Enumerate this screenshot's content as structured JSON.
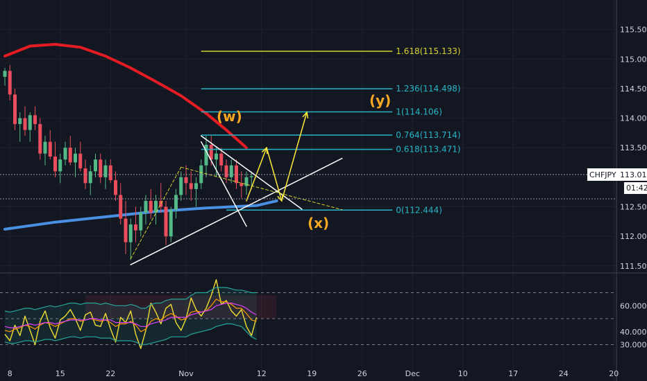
{
  "colors": {
    "background": "#131722",
    "grid": "#1e222d",
    "bull": "#53b987",
    "bear": "#eb4d5c",
    "ma_long": "#e51c23",
    "ma_blue": "#4a90e2",
    "trend": "#ffffff",
    "fib_teal": "#26b5c6",
    "fib_yellow": "#d8d22e",
    "projection": "#ffeb3b",
    "wave_label": "#f7a823",
    "rsi_yellow": "#e6d433",
    "rsi_orange": "#ff9800",
    "rsi_magenta": "#e040fb",
    "rsi_band": "#26a69a",
    "tag_bg": "#ffffff",
    "tag_text": "#131722"
  },
  "symbol_tag": {
    "symbol": "CHFJPY",
    "price": "113.018",
    "countdown": "01:42"
  },
  "wave_labels": {
    "w": "(w)",
    "x": "(x)",
    "y": "(y)"
  },
  "chart_data": {
    "type": "candlestick",
    "ylim": [
      111.38,
      116.0
    ],
    "xaxis": {
      "ticks": [
        {
          "bar": 1,
          "label": "8"
        },
        {
          "bar": 11,
          "label": "15"
        },
        {
          "bar": 21,
          "label": "22"
        },
        {
          "bar": 36,
          "label": "Nov"
        },
        {
          "bar": 51,
          "label": "12"
        },
        {
          "bar": 61,
          "label": "19"
        },
        {
          "bar": 71,
          "label": "26"
        },
        {
          "bar": 81,
          "label": "Dec"
        },
        {
          "bar": 91,
          "label": "10"
        },
        {
          "bar": 101,
          "label": "17"
        },
        {
          "bar": 111,
          "label": "24"
        },
        {
          "bar": 121,
          "label": "20"
        }
      ]
    },
    "yaxis_ticks": [
      "111.500",
      "112.000",
      "112.500",
      "113.000",
      "113.500",
      "114.000",
      "114.500",
      "115.000",
      "115.500"
    ],
    "last_price": 113.018,
    "fib_levels": [
      {
        "level": "1.618",
        "price": 115.133,
        "label": "1.618(115.133)",
        "color": "#d8d22e"
      },
      {
        "level": "1.236",
        "price": 114.498,
        "label": "1.236(114.498)",
        "color": "#26b5c6"
      },
      {
        "level": "1",
        "price": 114.106,
        "label": "1(114.106)",
        "color": "#26b5c6"
      },
      {
        "level": "0.764",
        "price": 113.714,
        "label": "0.764(113.714)",
        "color": "#26b5c6"
      },
      {
        "level": "0.618",
        "price": 113.471,
        "label": "0.618(113.471)",
        "color": "#26b5c6"
      },
      {
        "level": "0",
        "price": 112.444,
        "label": "0(112.444)",
        "color": "#26b5c6"
      }
    ],
    "candles": [
      [
        114.7,
        114.85,
        114.55,
        114.8
      ],
      [
        114.8,
        114.9,
        114.3,
        114.4
      ],
      [
        114.4,
        114.5,
        113.8,
        113.9
      ],
      [
        113.9,
        114.1,
        113.6,
        114.0
      ],
      [
        114.0,
        114.2,
        113.7,
        113.8
      ],
      [
        113.8,
        114.1,
        113.6,
        114.05
      ],
      [
        114.05,
        114.2,
        113.8,
        113.9
      ],
      [
        113.9,
        114.0,
        113.3,
        113.4
      ],
      [
        113.4,
        113.7,
        113.2,
        113.6
      ],
      [
        113.6,
        113.8,
        113.3,
        113.35
      ],
      [
        113.35,
        113.6,
        113.0,
        113.1
      ],
      [
        113.1,
        113.4,
        112.9,
        113.3
      ],
      [
        113.3,
        113.6,
        113.2,
        113.5
      ],
      [
        113.5,
        113.7,
        113.2,
        113.25
      ],
      [
        113.25,
        113.5,
        113.0,
        113.4
      ],
      [
        113.4,
        113.6,
        113.1,
        113.15
      ],
      [
        113.15,
        113.3,
        112.8,
        112.9
      ],
      [
        112.9,
        113.2,
        112.7,
        113.1
      ],
      [
        113.1,
        113.4,
        113.0,
        113.3
      ],
      [
        113.3,
        113.4,
        112.9,
        113.0
      ],
      [
        113.0,
        113.3,
        112.8,
        113.2
      ],
      [
        113.2,
        113.3,
        112.9,
        112.95
      ],
      [
        112.95,
        113.1,
        112.6,
        112.7
      ],
      [
        112.7,
        112.9,
        112.2,
        112.3
      ],
      [
        112.3,
        112.6,
        111.7,
        111.9
      ],
      [
        111.9,
        112.3,
        111.6,
        112.2
      ],
      [
        112.2,
        112.5,
        111.9,
        112.1
      ],
      [
        112.1,
        112.5,
        112.0,
        112.4
      ],
      [
        112.4,
        112.7,
        112.2,
        112.6
      ],
      [
        112.6,
        112.8,
        112.3,
        112.4
      ],
      [
        112.4,
        112.7,
        112.2,
        112.6
      ],
      [
        112.6,
        112.9,
        112.4,
        112.5
      ],
      [
        112.5,
        112.6,
        111.85,
        112.0
      ],
      [
        112.0,
        112.5,
        111.9,
        112.45
      ],
      [
        112.45,
        112.8,
        112.3,
        112.7
      ],
      [
        112.7,
        113.1,
        112.6,
        113.0
      ],
      [
        113.0,
        113.2,
        112.7,
        112.9
      ],
      [
        112.9,
        113.1,
        112.6,
        112.8
      ],
      [
        112.8,
        113.0,
        112.5,
        112.9
      ],
      [
        112.9,
        113.3,
        112.8,
        113.2
      ],
      [
        113.2,
        113.7,
        113.0,
        113.55
      ],
      [
        113.55,
        113.7,
        113.2,
        113.3
      ],
      [
        113.3,
        113.5,
        113.0,
        113.4
      ],
      [
        113.4,
        113.5,
        113.1,
        113.2
      ],
      [
        113.2,
        113.3,
        112.9,
        113.0
      ],
      [
        113.0,
        113.3,
        112.9,
        113.2
      ],
      [
        113.2,
        113.3,
        112.8,
        112.9
      ],
      [
        112.9,
        113.1,
        112.65,
        112.85
      ],
      [
        112.85,
        113.1,
        112.7,
        113.0
      ],
      [
        113.0,
        113.1,
        112.8,
        113.018
      ]
    ],
    "ma_red": [
      [
        0,
        115.05
      ],
      [
        5,
        115.22
      ],
      [
        10,
        115.25
      ],
      [
        15,
        115.2
      ],
      [
        20,
        115.05
      ],
      [
        25,
        114.85
      ],
      [
        30,
        114.62
      ],
      [
        35,
        114.38
      ],
      [
        40,
        114.08
      ],
      [
        44,
        113.8
      ],
      [
        48,
        113.5
      ]
    ],
    "ma_blue": [
      [
        0,
        112.12
      ],
      [
        10,
        112.24
      ],
      [
        20,
        112.33
      ],
      [
        30,
        112.42
      ],
      [
        40,
        112.48
      ],
      [
        50,
        112.52
      ],
      [
        54,
        112.6
      ]
    ],
    "trend_lines": [
      {
        "from": [
          25,
          111.52
        ],
        "to": [
          67,
          113.32
        ]
      },
      {
        "from": [
          39,
          113.7
        ],
        "to": [
          59,
          112.46
        ]
      },
      {
        "from": [
          39,
          113.6
        ],
        "to": [
          48,
          112.17
        ]
      }
    ],
    "dashed_yellow": [
      {
        "from": [
          25,
          111.62
        ],
        "to": [
          35,
          113.17
        ]
      },
      {
        "from": [
          35,
          113.17
        ],
        "to": [
          67,
          112.45
        ]
      }
    ],
    "projection_path": [
      [
        48,
        112.6
      ],
      [
        52,
        113.5
      ],
      [
        55,
        112.6
      ],
      [
        60,
        114.1
      ]
    ],
    "oscillator": {
      "ylim": [
        18,
        82
      ],
      "ticks": [
        "30.0000",
        "40.0000",
        "60.0000"
      ],
      "dashed_levels": [
        70,
        50,
        30
      ],
      "series": [
        {
          "name": "fast",
          "color": "#e6d433",
          "values": [
            38,
            33,
            45,
            37,
            52,
            41,
            30,
            48,
            56,
            43,
            35,
            49,
            52,
            57,
            50,
            41,
            53,
            55,
            45,
            44,
            54,
            42,
            32,
            51,
            47,
            56,
            38,
            27,
            41,
            62,
            55,
            46,
            58,
            61,
            47,
            41,
            50,
            66,
            57,
            52,
            58,
            68,
            80,
            61,
            64,
            56,
            52,
            57,
            44,
            37,
            51
          ]
        },
        {
          "name": "signal",
          "color": "#ff9800",
          "values": [
            41,
            40,
            42,
            43,
            45,
            44,
            42,
            45,
            47,
            46,
            44,
            46,
            48,
            50,
            50,
            48,
            49,
            50,
            49,
            48,
            49,
            47,
            44,
            46,
            46,
            48,
            45,
            40,
            42,
            48,
            50,
            49,
            52,
            54,
            52,
            49,
            50,
            55,
            56,
            55,
            56,
            60,
            65,
            63,
            63,
            61,
            58,
            58,
            54,
            49,
            48
          ]
        },
        {
          "name": "ma",
          "color": "#e040fb",
          "values": [
            44,
            43,
            43,
            44,
            45,
            46,
            45,
            46,
            47,
            47,
            46,
            47,
            48,
            49,
            49,
            49,
            49,
            50,
            50,
            49,
            49,
            49,
            47,
            47,
            47,
            47,
            46,
            44,
            44,
            46,
            47,
            48,
            49,
            51,
            51,
            51,
            51,
            53,
            54,
            55,
            56,
            57,
            60,
            61,
            62,
            62,
            61,
            60,
            58,
            55,
            53
          ]
        },
        {
          "name": "band_upper",
          "color": "#26a69a",
          "values": [
            56,
            55,
            56,
            57,
            58,
            58,
            57,
            58,
            59,
            60,
            59,
            60,
            61,
            62,
            62,
            61,
            62,
            62,
            62,
            61,
            62,
            61,
            60,
            60,
            60,
            61,
            60,
            58,
            58,
            61,
            62,
            62,
            64,
            65,
            65,
            65,
            65,
            68,
            70,
            70,
            70,
            72,
            74,
            74,
            74,
            73,
            72,
            72,
            71,
            70,
            70
          ]
        },
        {
          "name": "band_lower",
          "color": "#26a69a",
          "values": [
            32,
            31,
            31,
            32,
            33,
            33,
            32,
            33,
            34,
            34,
            33,
            34,
            35,
            36,
            36,
            35,
            36,
            36,
            36,
            35,
            35,
            35,
            33,
            33,
            33,
            33,
            32,
            30,
            30,
            31,
            32,
            33,
            34,
            36,
            36,
            36,
            36,
            38,
            39,
            40,
            41,
            42,
            44,
            45,
            46,
            46,
            45,
            44,
            40,
            36,
            34
          ]
        }
      ]
    }
  }
}
